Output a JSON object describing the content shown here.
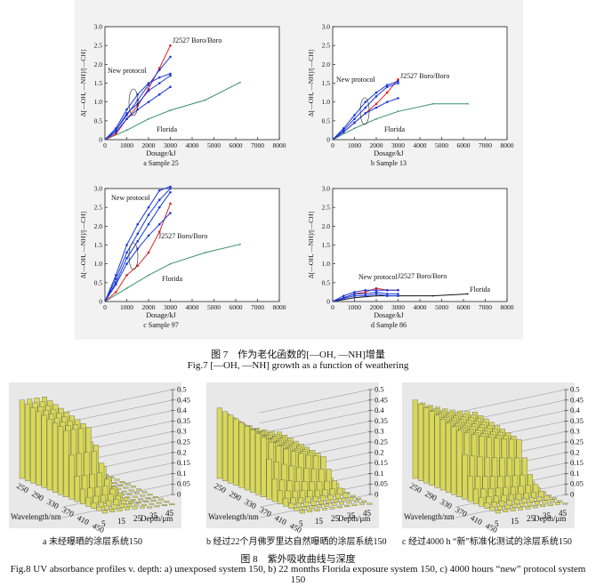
{
  "fig7": {
    "caption_cn": "图 7　作为老化函数的[—OH, —NH]增量",
    "caption_en": "Fig.7 [—OH, —NH] growth as a function of weathering",
    "panels": [
      {
        "id": "a",
        "sublabel": "a  Sample 25",
        "ylabel": "Δ[—OH, —NH]/[—CH]",
        "xlabel": "Dosage/kJ",
        "xticks": [
          0,
          1000,
          2000,
          3000,
          4000,
          5000,
          6000,
          7000,
          8000
        ],
        "yticks": [
          "0",
          "0.5",
          "1.0",
          "1.5",
          "2.0",
          "2.5",
          "3.0"
        ],
        "labels": {
          "new": "New protocol",
          "j": "J2527 Boro/Boro",
          "fl": "Florida"
        }
      },
      {
        "id": "b",
        "sublabel": "b  Sample 13",
        "ylabel": "Δ[—OH, —NH]/[—CH]",
        "xlabel": "Dosage/kJ",
        "xticks": [
          0,
          1000,
          2000,
          3000,
          4000,
          5000,
          6000,
          7000,
          8000
        ],
        "yticks": [
          "0",
          "0.5",
          "1.0",
          "1.5",
          "2.0",
          "2.5",
          "3.0"
        ],
        "labels": {
          "new": "New protocol",
          "j": "J2527 Boro/Boro",
          "fl": "Florida"
        }
      },
      {
        "id": "c",
        "sublabel": "c  Sample 97",
        "ylabel": "Δ[—OH, —NH]/[—CH]",
        "xlabel": "Dosage/kJ",
        "xticks": [
          0,
          1000,
          2000,
          3000,
          4000,
          5000,
          6000,
          7000,
          8000
        ],
        "yticks": [
          "0",
          "0.5",
          "1.0",
          "1.5",
          "2.0",
          "2.5",
          "3.0"
        ],
        "labels": {
          "new": "New protocol",
          "j": "J2527 Boro/Boro",
          "fl": "Florida"
        }
      },
      {
        "id": "d",
        "sublabel": "d  Sample 86",
        "ylabel": "Δ[—OH, —NH]/[—CH]",
        "xlabel": "Dosage/kJ",
        "xticks": [
          0,
          1000,
          2000,
          3000,
          4000,
          5000,
          6000,
          7000,
          8000
        ],
        "yticks": [
          "0",
          "0.5",
          "1.0",
          "1.5",
          "2.0",
          "2.5",
          "3.0"
        ],
        "labels": {
          "new": "New protocol",
          "j": "J2527 Boro/Boro",
          "fl": "Florida"
        }
      }
    ]
  },
  "fig8": {
    "caption_cn": "图 8　紫外吸收曲线与深度",
    "caption_en": "Fig.8 UV absorbance profiles v. depth: a) unexposed system 150, b) 22 months Florida exposure system 150, c) 4000 hours “new” protocol system 150",
    "panels": [
      {
        "id": "a",
        "sublabel": "a 未经曝晒的涂层系统150"
      },
      {
        "id": "b",
        "sublabel": "b 经过22个月佛罗里达自然曝晒的涂层系统150"
      },
      {
        "id": "c",
        "sublabel": "c 经过4000 h “新”标准化测试的涂层系统150"
      }
    ],
    "zticks": [
      "0.5",
      "0.45",
      "0.4",
      "0.35",
      "0.3",
      "0.25",
      "0.2",
      "0.15",
      "0.1",
      "0.05",
      "0"
    ],
    "wl_ticks": [
      "250",
      "290",
      "330",
      "370",
      "410",
      "450"
    ],
    "depth_ticks": [
      "5",
      "15",
      "25",
      "35",
      "45"
    ],
    "wl_label": "Wavelength/nm",
    "depth_label": "Depth/μm",
    "surface_color": "#d8d85a"
  },
  "chart_data": [
    {
      "type": "line",
      "title": "a  Sample 25",
      "xlabel": "Dosage/kJ",
      "ylabel": "Δ[—OH, —NH]/[—CH]",
      "xlim": [
        0,
        8000
      ],
      "ylim": [
        0,
        3.0
      ],
      "series": [
        {
          "name": "Florida",
          "color": "#3a8f6a",
          "x": [
            0,
            1000,
            2000,
            3000,
            4600,
            6200
          ],
          "y": [
            0,
            0.25,
            0.55,
            0.78,
            1.05,
            1.52
          ]
        },
        {
          "name": "J2527 Boro/Boro",
          "color": "#e02020",
          "x": [
            0,
            500,
            1000,
            1500,
            2000,
            2500,
            3000
          ],
          "y": [
            0,
            0.15,
            0.55,
            0.9,
            1.35,
            1.9,
            2.5
          ]
        },
        {
          "color": "#1a3ad8",
          "x": [
            0,
            500,
            1000,
            1500,
            2000,
            2500,
            3000
          ],
          "y": [
            0,
            0.25,
            0.65,
            1.05,
            1.45,
            1.85,
            2.2
          ]
        },
        {
          "color": "#1a3ad8",
          "x": [
            0,
            500,
            1000,
            1500,
            2000,
            2500,
            3000
          ],
          "y": [
            0,
            0.3,
            0.8,
            1.2,
            1.5,
            1.65,
            1.75
          ]
        },
        {
          "color": "#1a3ad8",
          "x": [
            0,
            500,
            1000,
            1500,
            2000,
            2500,
            3000
          ],
          "y": [
            0,
            0.25,
            0.7,
            0.95,
            1.3,
            1.5,
            1.7
          ]
        },
        {
          "color": "#1a3ad8",
          "x": [
            0,
            500,
            1000,
            1500,
            2000,
            2500,
            3000
          ],
          "y": [
            0,
            0.2,
            0.55,
            0.8,
            1.0,
            1.2,
            1.4
          ]
        }
      ]
    },
    {
      "type": "line",
      "title": "b  Sample 13",
      "xlabel": "Dosage/kJ",
      "ylabel": "Δ[—OH, —NH]/[—CH]",
      "xlim": [
        0,
        8000
      ],
      "ylim": [
        0,
        3.0
      ],
      "series": [
        {
          "name": "Florida",
          "color": "#3a8f6a",
          "x": [
            0,
            1000,
            2000,
            3000,
            4600,
            6200
          ],
          "y": [
            0,
            0.3,
            0.55,
            0.75,
            0.95,
            0.95
          ]
        },
        {
          "name": "J2527 Boro/Boro",
          "color": "#e02020",
          "x": [
            0,
            500,
            1000,
            1500,
            2000,
            2500,
            3000
          ],
          "y": [
            0,
            0.2,
            0.45,
            0.7,
            0.95,
            1.25,
            1.6
          ]
        },
        {
          "color": "#1a3ad8",
          "x": [
            0,
            500,
            1000,
            1500,
            2000,
            2500,
            3000
          ],
          "y": [
            0,
            0.3,
            0.65,
            1.0,
            1.25,
            1.45,
            1.55
          ]
        },
        {
          "color": "#1a3ad8",
          "x": [
            0,
            500,
            1000,
            1500,
            2000,
            2500,
            3000
          ],
          "y": [
            0,
            0.25,
            0.55,
            0.85,
            1.15,
            1.4,
            1.5
          ]
        },
        {
          "color": "#1a3ad8",
          "x": [
            0,
            500,
            1000,
            1500,
            2000,
            2500,
            3000
          ],
          "y": [
            0,
            0.2,
            0.45,
            0.7,
            0.85,
            1.0,
            1.1
          ]
        }
      ]
    },
    {
      "type": "line",
      "title": "c  Sample 97",
      "xlabel": "Dosage/kJ",
      "ylabel": "Δ[—OH, —NH]/[—CH]",
      "xlim": [
        0,
        8000
      ],
      "ylim": [
        0,
        3.0
      ],
      "series": [
        {
          "name": "Florida",
          "color": "#3a8f6a",
          "x": [
            0,
            1000,
            2000,
            3000,
            4600,
            6200
          ],
          "y": [
            0,
            0.35,
            0.7,
            1.0,
            1.3,
            1.52
          ]
        },
        {
          "name": "J2527 Boro/Boro",
          "color": "#e02020",
          "x": [
            0,
            500,
            1000,
            1500,
            2000,
            2500,
            3000
          ],
          "y": [
            0,
            0.25,
            0.7,
            0.95,
            1.3,
            1.85,
            2.6
          ]
        },
        {
          "color": "#1a3ad8",
          "x": [
            0,
            500,
            1000,
            1500,
            2000,
            2500,
            3000
          ],
          "y": [
            0,
            0.7,
            1.5,
            2.05,
            2.5,
            2.95,
            3.05
          ]
        },
        {
          "color": "#1a3ad8",
          "x": [
            0,
            500,
            1000,
            1500,
            2000,
            2500,
            3000
          ],
          "y": [
            0,
            0.6,
            1.3,
            1.8,
            2.3,
            2.7,
            3.0
          ]
        },
        {
          "color": "#1a3ad8",
          "x": [
            0,
            500,
            1000,
            1500,
            2000,
            2500,
            3000
          ],
          "y": [
            0,
            0.5,
            1.15,
            1.6,
            2.05,
            2.5,
            2.9
          ]
        },
        {
          "color": "#1a3ad8",
          "x": [
            0,
            500,
            1000,
            1500,
            2000,
            2500,
            3000
          ],
          "y": [
            0,
            0.45,
            1.0,
            1.4,
            1.75,
            2.05,
            2.35
          ]
        }
      ]
    },
    {
      "type": "line",
      "title": "d  Sample 86",
      "xlabel": "Dosage/kJ",
      "ylabel": "Δ[—OH, —NH]/[—CH]",
      "xlim": [
        0,
        8000
      ],
      "ylim": [
        0,
        3.0
      ],
      "series": [
        {
          "name": "Florida",
          "color": "#111111",
          "x": [
            0,
            1000,
            2000,
            3000,
            4600,
            6200
          ],
          "y": [
            0,
            0.1,
            0.15,
            0.15,
            0.15,
            0.2
          ]
        },
        {
          "name": "J2527 Boro/Boro",
          "color": "#e02020",
          "x": [
            0,
            500,
            1000,
            1500,
            2000,
            2500,
            3000
          ],
          "y": [
            0,
            0.1,
            0.2,
            0.25,
            0.35,
            0.3,
            0.3
          ]
        },
        {
          "color": "#1a3ad8",
          "x": [
            0,
            500,
            1000,
            1500,
            2000,
            2500,
            3000
          ],
          "y": [
            0,
            0.15,
            0.25,
            0.3,
            0.3,
            0.3,
            0.3
          ]
        },
        {
          "color": "#1a3ad8",
          "x": [
            0,
            500,
            1000,
            1500,
            2000,
            2500,
            3000
          ],
          "y": [
            0,
            0.1,
            0.2,
            0.2,
            0.25,
            0.2,
            0.2
          ]
        },
        {
          "color": "#1a3ad8",
          "x": [
            0,
            500,
            1000,
            1500,
            2000,
            2500,
            3000
          ],
          "y": [
            0,
            0.08,
            0.15,
            0.15,
            0.2,
            0.15,
            0.15
          ]
        }
      ]
    }
  ]
}
